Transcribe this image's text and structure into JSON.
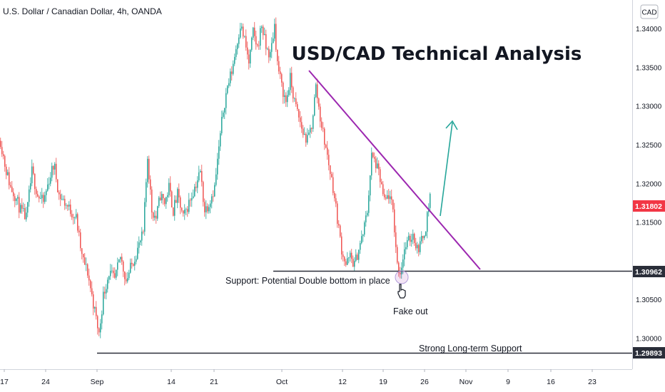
{
  "header": {
    "symbol_label": "U.S. Dollar / Canadian Dollar, 4h, OANDA",
    "currency_badge": "CAD"
  },
  "chart_data": {
    "type": "candlestick",
    "title": "USD/CAD Technical Analysis",
    "timeframe": "4h",
    "quote_currency": "CAD",
    "x_tick_labels": [
      "17",
      "24",
      "Sep",
      "14",
      "21",
      "Oct",
      "12",
      "19",
      "26",
      "Nov",
      "9",
      "16",
      "23"
    ],
    "y_tick_labels": [
      "1.34000",
      "1.33500",
      "1.33000",
      "1.32500",
      "1.32000",
      "1.31500",
      "1.30500",
      "1.30000"
    ],
    "ylim": [
      1.296,
      1.3435
    ],
    "current_price": {
      "label": "1.31802",
      "value": 1.31802,
      "color": "#f23645"
    },
    "support_levels": [
      {
        "label": "1.30962",
        "value": 1.30962,
        "annotation": "Support: Potential Double bottom in place"
      },
      {
        "label": "1.29893",
        "value": 1.29893,
        "annotation": "Strong Long-term Support"
      }
    ],
    "annotations": {
      "fake_out": "Fake out",
      "trendline_color": "#9c27b0",
      "projection_arrow_color": "#26a69a"
    },
    "price_path": [
      [
        0,
        1.3255
      ],
      [
        7,
        1.322
      ],
      [
        14,
        1.3195
      ],
      [
        20,
        1.3185
      ],
      [
        28,
        1.3165
      ],
      [
        36,
        1.3155
      ],
      [
        44,
        1.3215
      ],
      [
        52,
        1.3185
      ],
      [
        60,
        1.3175
      ],
      [
        68,
        1.3205
      ],
      [
        75,
        1.3225
      ],
      [
        82,
        1.3185
      ],
      [
        90,
        1.3175
      ],
      [
        98,
        1.3165
      ],
      [
        106,
        1.3155
      ],
      [
        114,
        1.3105
      ],
      [
        122,
        1.3085
      ],
      [
        130,
        1.3045
      ],
      [
        138,
        1.3005
      ],
      [
        144,
        1.3055
      ],
      [
        152,
        1.3085
      ],
      [
        160,
        1.3075
      ],
      [
        168,
        1.3105
      ],
      [
        176,
        1.3075
      ],
      [
        184,
        1.3095
      ],
      [
        192,
        1.3115
      ],
      [
        200,
        1.3135
      ],
      [
        206,
        1.3235
      ],
      [
        212,
        1.3165
      ],
      [
        218,
        1.3155
      ],
      [
        224,
        1.3185
      ],
      [
        230,
        1.3175
      ],
      [
        236,
        1.3195
      ],
      [
        242,
        1.3165
      ],
      [
        248,
        1.3185
      ],
      [
        256,
        1.3155
      ],
      [
        264,
        1.3175
      ],
      [
        272,
        1.3195
      ],
      [
        280,
        1.3215
      ],
      [
        286,
        1.3165
      ],
      [
        292,
        1.3175
      ],
      [
        300,
        1.3195
      ],
      [
        306,
        1.3245
      ],
      [
        312,
        1.3295
      ],
      [
        318,
        1.3325
      ],
      [
        324,
        1.3345
      ],
      [
        330,
        1.3375
      ],
      [
        336,
        1.3405
      ],
      [
        342,
        1.3385
      ],
      [
        348,
        1.3355
      ],
      [
        354,
        1.3395
      ],
      [
        360,
        1.3375
      ],
      [
        366,
        1.3405
      ],
      [
        372,
        1.3375
      ],
      [
        378,
        1.3365
      ],
      [
        384,
        1.3405
      ],
      [
        388,
        1.3355
      ],
      [
        394,
        1.3325
      ],
      [
        400,
        1.3305
      ],
      [
        406,
        1.3335
      ],
      [
        412,
        1.3305
      ],
      [
        418,
        1.3285
      ],
      [
        424,
        1.3265
      ],
      [
        430,
        1.3255
      ],
      [
        436,
        1.3275
      ],
      [
        442,
        1.3325
      ],
      [
        448,
        1.3285
      ],
      [
        454,
        1.3255
      ],
      [
        460,
        1.3225
      ],
      [
        466,
        1.3195
      ],
      [
        472,
        1.3155
      ],
      [
        478,
        1.3115
      ],
      [
        484,
        1.3095
      ],
      [
        490,
        1.3105
      ],
      [
        496,
        1.3095
      ],
      [
        502,
        1.3115
      ],
      [
        508,
        1.3135
      ],
      [
        514,
        1.3165
      ],
      [
        520,
        1.3235
      ],
      [
        526,
        1.3225
      ],
      [
        532,
        1.3205
      ],
      [
        538,
        1.3175
      ],
      [
        544,
        1.3185
      ],
      [
        550,
        1.3165
      ],
      [
        556,
        1.3095
      ],
      [
        560,
        1.3085
      ],
      [
        566,
        1.3115
      ],
      [
        572,
        1.3125
      ],
      [
        578,
        1.3135
      ],
      [
        584,
        1.3115
      ],
      [
        590,
        1.3125
      ],
      [
        596,
        1.3145
      ],
      [
        602,
        1.3185
      ]
    ]
  }
}
